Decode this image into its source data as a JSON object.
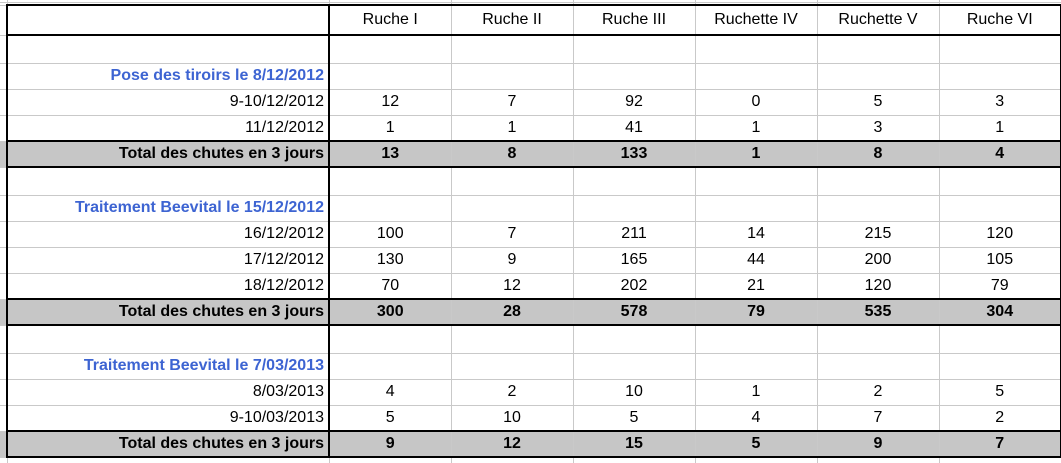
{
  "table": {
    "columns": [
      "",
      "Ruche I",
      "Ruche II",
      "Ruche III",
      "Ruchette IV",
      "Ruchette V",
      "Ruche VI"
    ],
    "sections": [
      {
        "title": "Pose des tiroirs le 8/12/2012",
        "rows": [
          {
            "label": "9-10/12/2012",
            "values": [
              12,
              7,
              92,
              0,
              5,
              3
            ]
          },
          {
            "label": "11/12/2012",
            "values": [
              1,
              1,
              41,
              1,
              3,
              1
            ]
          }
        ],
        "total": {
          "label": "Total des chutes en 3 jours",
          "values": [
            13,
            8,
            133,
            1,
            8,
            4
          ]
        }
      },
      {
        "title": "Traitement Beevital le 15/12/2012",
        "rows": [
          {
            "label": "16/12/2012",
            "values": [
              100,
              7,
              211,
              14,
              215,
              120
            ]
          },
          {
            "label": "17/12/2012",
            "values": [
              130,
              9,
              165,
              44,
              200,
              105
            ]
          },
          {
            "label": "18/12/2012",
            "values": [
              70,
              12,
              202,
              21,
              120,
              79
            ]
          }
        ],
        "total": {
          "label": "Total des chutes en 3 jours",
          "values": [
            300,
            28,
            578,
            79,
            535,
            304
          ]
        }
      },
      {
        "title": "Traitement Beevital le 7/03/2013",
        "rows": [
          {
            "label": "8/03/2013",
            "values": [
              4,
              2,
              10,
              1,
              2,
              5
            ]
          },
          {
            "label": "9-10/03/2013",
            "values": [
              5,
              10,
              5,
              4,
              7,
              2
            ]
          }
        ],
        "total": {
          "label": "Total des chutes en 3 jours",
          "values": [
            9,
            12,
            15,
            5,
            9,
            7
          ]
        }
      }
    ],
    "colors": {
      "section_title_blue": "#3D64D2",
      "total_row_bg": "#C6C6C6",
      "grid_line": "#C9C9C9",
      "table_border": "#000000"
    }
  }
}
